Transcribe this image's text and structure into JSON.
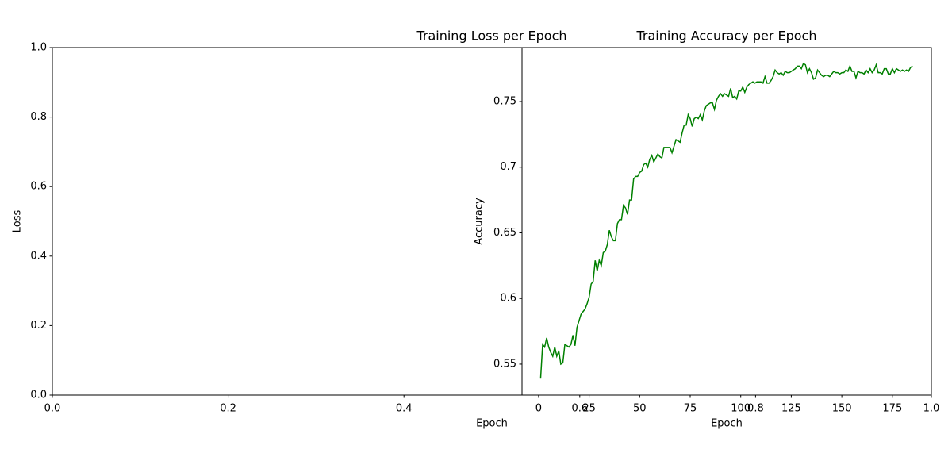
{
  "chart_data": [
    {
      "type": "line",
      "title": "Training Loss per Epoch",
      "xlabel": "Epoch",
      "ylabel": "Loss",
      "xlim": [
        0,
        1
      ],
      "ylim": [
        0,
        1
      ],
      "xticks": [
        {
          "value": 0,
          "label": "0.0"
        },
        {
          "value": 0.2,
          "label": "0.2"
        },
        {
          "value": 0.4,
          "label": "0.4"
        },
        {
          "value": 0.6,
          "label": "0.6"
        },
        {
          "value": 0.8,
          "label": "0.8"
        },
        {
          "value": 1,
          "label": "1.0"
        }
      ],
      "yticks": [
        {
          "value": 0,
          "label": "0.0"
        },
        {
          "value": 0.2,
          "label": "0.2"
        },
        {
          "value": 0.4,
          "label": "0.4"
        },
        {
          "value": 0.6,
          "label": "0.6"
        },
        {
          "value": 0.8,
          "label": "0.8"
        },
        {
          "value": 1,
          "label": "1.0"
        }
      ]
    },
    {
      "type": "line",
      "title": "Training Accuracy per Epoch",
      "xlabel": "Epoch",
      "ylabel": "Accuracy",
      "xlim": [
        -8.2,
        194.3
      ],
      "ylim": [
        0.5264,
        0.7911
      ],
      "xticks": [
        0,
        25,
        50,
        75,
        100,
        125,
        150,
        175
      ],
      "yticks": [
        0.55,
        0.6,
        0.65,
        0.7,
        0.75
      ],
      "x": [
        1,
        2,
        3,
        4,
        5,
        6,
        7,
        8,
        9,
        10,
        11,
        12,
        13,
        14,
        15,
        16,
        17,
        18,
        19,
        20,
        21,
        22,
        23,
        24,
        25,
        26,
        27,
        28,
        29,
        30,
        31,
        32,
        33,
        34,
        35,
        36,
        37,
        38,
        39,
        40,
        41,
        42,
        43,
        44,
        45,
        46,
        47,
        48,
        49,
        50,
        51,
        52,
        53,
        54,
        55,
        56,
        57,
        58,
        59,
        60,
        61,
        62,
        63,
        64,
        65,
        66,
        67,
        68,
        69,
        70,
        71,
        72,
        73,
        74,
        75,
        76,
        77,
        78,
        79,
        80,
        81,
        82,
        83,
        84,
        85,
        86,
        87,
        88,
        89,
        90,
        91,
        92,
        93,
        94,
        95,
        96,
        97,
        98,
        99,
        100,
        101,
        102,
        103,
        104,
        105,
        106,
        107,
        108,
        109,
        110,
        111,
        112,
        113,
        114,
        115,
        116,
        117,
        118,
        119,
        120,
        121,
        122,
        123,
        124,
        125,
        126,
        127,
        128,
        129,
        130,
        131,
        132,
        133,
        134,
        135,
        136,
        137,
        138,
        139,
        140,
        141,
        142,
        143,
        144,
        145,
        146,
        147,
        148,
        149,
        150,
        151,
        152,
        153,
        154,
        155,
        156,
        157,
        158,
        159,
        160,
        161,
        162,
        163,
        164,
        165,
        166,
        167,
        168,
        169,
        170,
        171,
        172,
        173,
        174,
        175,
        176,
        177,
        178,
        179,
        180,
        181,
        182,
        183,
        184,
        185
      ],
      "series": [
        {
          "color": "#008000",
          "values": [
            0.539,
            0.565,
            0.563,
            0.57,
            0.563,
            0.559,
            0.556,
            0.563,
            0.556,
            0.56,
            0.55,
            0.551,
            0.565,
            0.564,
            0.563,
            0.565,
            0.572,
            0.564,
            0.578,
            0.583,
            0.588,
            0.59,
            0.592,
            0.596,
            0.601,
            0.611,
            0.613,
            0.629,
            0.621,
            0.629,
            0.625,
            0.635,
            0.636,
            0.641,
            0.652,
            0.647,
            0.644,
            0.644,
            0.657,
            0.66,
            0.66,
            0.671,
            0.669,
            0.664,
            0.675,
            0.675,
            0.691,
            0.693,
            0.693,
            0.696,
            0.697,
            0.702,
            0.703,
            0.7,
            0.706,
            0.709,
            0.704,
            0.707,
            0.71,
            0.708,
            0.707,
            0.715,
            0.715,
            0.715,
            0.715,
            0.711,
            0.716,
            0.721,
            0.72,
            0.719,
            0.726,
            0.732,
            0.732,
            0.74,
            0.737,
            0.731,
            0.737,
            0.738,
            0.737,
            0.74,
            0.736,
            0.743,
            0.747,
            0.748,
            0.749,
            0.749,
            0.744,
            0.751,
            0.754,
            0.756,
            0.754,
            0.756,
            0.755,
            0.754,
            0.76,
            0.753,
            0.754,
            0.752,
            0.758,
            0.758,
            0.761,
            0.757,
            0.761,
            0.763,
            0.764,
            0.765,
            0.764,
            0.765,
            0.765,
            0.765,
            0.764,
            0.769,
            0.764,
            0.764,
            0.766,
            0.769,
            0.774,
            0.772,
            0.771,
            0.772,
            0.77,
            0.773,
            0.772,
            0.772,
            0.773,
            0.774,
            0.775,
            0.777,
            0.777,
            0.775,
            0.779,
            0.778,
            0.772,
            0.775,
            0.772,
            0.767,
            0.768,
            0.774,
            0.772,
            0.77,
            0.769,
            0.77,
            0.77,
            0.769,
            0.771,
            0.773,
            0.772,
            0.772,
            0.771,
            0.772,
            0.772,
            0.774,
            0.773,
            0.777,
            0.773,
            0.773,
            0.768,
            0.773,
            0.772,
            0.772,
            0.771,
            0.774,
            0.772,
            0.775,
            0.772,
            0.774,
            0.778,
            0.772,
            0.772,
            0.771,
            0.775,
            0.775,
            0.771,
            0.771,
            0.775,
            0.772,
            0.775,
            0.774,
            0.773,
            0.774,
            0.773,
            0.774,
            0.773,
            0.776,
            0.777
          ]
        }
      ]
    }
  ]
}
